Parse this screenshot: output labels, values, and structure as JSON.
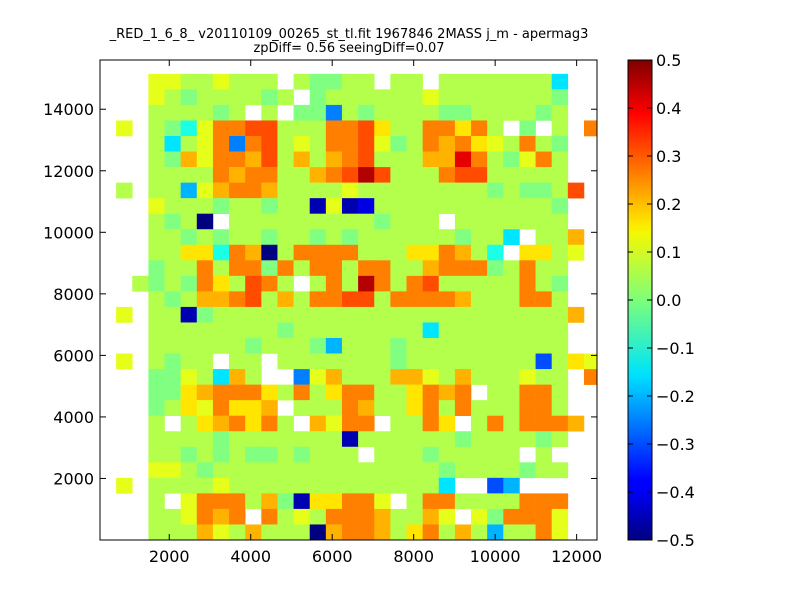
{
  "chart_data": {
    "type": "heatmap",
    "title_line1": "_RED_1_6_8_ v20110109_00265_st_tl.fit 1967846 2MASS j_m - apermag3",
    "title_line2": "zpDiff= 0.56 seeingDiff=0.07",
    "xlim": [
      300,
      12500
    ],
    "ylim": [
      0,
      15600
    ],
    "x_ticks": [
      2000,
      4000,
      6000,
      8000,
      10000,
      12000
    ],
    "x_tick_labels": [
      "2000",
      "4000",
      "6000",
      "8000",
      "10000",
      "12000"
    ],
    "y_ticks": [
      2000,
      4000,
      6000,
      8000,
      10000,
      12000,
      14000
    ],
    "y_tick_labels": [
      "2000",
      "4000",
      "6000",
      "8000",
      "10000",
      "12000",
      "14000"
    ],
    "colorbar": {
      "min": -0.5,
      "max": 0.5,
      "colormap": "jet",
      "ticks": [
        0.5,
        0.4,
        0.3,
        0.2,
        0.1,
        0.0,
        -0.1,
        -0.2,
        -0.3,
        -0.4,
        -0.5
      ],
      "tick_labels": [
        "0.5",
        "0.4",
        "0.3",
        "0.2",
        "0.1",
        "0.0",
        "−0.1",
        "−0.2",
        "−0.3",
        "−0.4",
        "−0.5"
      ]
    },
    "grid": {
      "x0": 300,
      "dx": 396,
      "y0": 0,
      "dy": 505,
      "cols": 31,
      "rows": 31,
      "rows_top_to_bottom": [
        ". . . . . . . . . . . . . . . . . . . . . . . . . . . . . . .",
        ". . . 0.1 0.1 0.05 0.05 0.1 0.05 0.05 0.05 . 0.05 0.0 0.0 0.05 0.05 . 0.05 0.05 . 0.05 0.05 0.05 0.05 0.05 0.05 0.05 -0.15 . .",
        ". . . 0.1 0.05 0.0 0.05 0.05 0.05 0.05 0.0 0.05 . 0.0 0.05 0.05 0.05 0.05 0.05 0.05 0.1 0.05 0.05 0.05 0.05 0.05 0.05 0.05 0.0 . .",
        ". . . 0.05 0.05 0.05 0.05 0.0 0.05 . 0.05 . 0.0 0.0 -0.25 0.05 0.0 0.05 0.05 0.05 0.05 0.0 0.0 0.05 0.05 0.05 0.05 0.0 0.05 . .",
        ". 0.1 . 0.05 0.0 -0.1 0.1 0.25 0.25 0.3 0.3 0.05 0.05 0.05 0.25 0.25 0.3 0.15 0.05 0.05 0.25 0.25 0.15 0.25 0.05 . 0.0 . 0.05 . 0.25",
        ". . . 0.05 -0.15 0.05 0.1 0.25 -0.25 0.25 0.3 0.05 0.1 0.05 0.25 0.25 0.3 0.1 0.0 0.05 0.25 0.2 0.25 0.15 0.1 0.05 0.25 0.05 0.0 . .",
        ". . . 0.05 0.0 0.2 0.1 0.25 0.25 0.2 0.3 0.05 0.2 0.05 0.2 0.25 0.3 0.05 0.05 0.05 0.2 0.2 0.4 0.25 0.05 0.0 0.1 0.25 0.05 . .",
        ". . . 0.05 0.05 0.05 0.05 0.25 0.2 0.25 0.25 0.05 0.05 0.2 0.25 0.3 0.45 0.3 0.05 0.05 0.05 0.25 0.3 0.3 0.05 0.05 0.05 0.05 0.05 . .",
        ". 0.05 . 0.05 0.05 -0.2 0.1 0.2 0.25 0.25 0.2 0.05 0.05 0.05 0.05 0.1 0.05 0.05 0.05 0.05 0.05 0.05 0.05 0.05 0.0 0.05 0.0 0.0 0.05 0.3 .",
        ". . . 0.1 0.05 0.05 0.05 0.0 0.05 0.05 0.0 0.05 0.05 -0.45 0.1 -0.45 -0.4 0.05 0.05 0.05 0.05 0.05 0.05 0.05 0.05 0.05 0.05 0.05 0.0 . .",
        ". . . 0.05 0.0 0.05 -0.5 . 0.05 0.05 0.05 0.05 0.05 0.05 0.05 0.05 0.05 0.0 0.05 0.05 0.05 . 0.05 0.05 0.05 0.05 0.05 0.05 0.05 . .",
        ". . . 0.05 0.05 0.0 0.05 0.0 0.05 0.05 0.0 0.05 0.05 0.0 0.05 0.0 0.05 0.05 0.05 0.05 0.05 0.05 0.0 0.05 0.05 -0.15 . 0.05 0.05 0.2 .",
        ". . . 0.05 0.05 0.15 0.15 -0.1 0.25 0.2 -0.5 0.05 0.25 0.25 0.25 0.25 0.05 0.05 0.05 0.15 0.15 0.25 0.2 0.05 -0.1 . 0.15 0.15 0.05 0.1 .",
        ". . . 0.0 0.05 0.05 0.25 0.05 0.25 0.25 0.0 0.25 0.05 0.25 0.25 0.05 0.25 0.25 0.05 0.05 0.2 0.25 0.25 0.25 0.0 0.05 0.25 0.05 0.05 . .",
        ". . 0.05 0.0 0.05 0.0 0.25 0.15 0.05 0.3 0.25 0.05 . 0.05 0.25 0.05 0.45 0.25 0.05 0.25 0.3 0.05 0.05 0.05 0.05 0.05 0.25 0.05 0.0 . .",
        ". . . 0.05 0.0 0.05 0.2 0.2 0.25 0.3 0.05 0.2 0.05 0.25 0.25 0.3 0.3 0.05 0.25 0.25 0.25 0.25 0.2 0.05 0.05 0.05 0.25 0.25 0.05 . .",
        ". 0.1 . 0.05 0.05 -0.45 0.0 0.05 0.05 0.05 0.05 0.05 0.05 0.05 0.05 0.05 0.05 0.05 0.05 0.05 0.05 0.05 0.05 0.05 0.05 0.05 0.05 0.05 0.05 0.2 .",
        ". . . 0.05 0.05 0.05 0.05 0.05 0.05 0.05 0.05 0.0 0.05 0.05 0.05 0.05 0.05 0.05 0.05 0.05 -0.15 0.05 0.05 0.05 0.05 0.05 0.05 0.05 0.05 . .",
        ". . . 0.05 0.05 0.05 0.05 0.05 0.05 0.0 0.05 0.05 0.05 0.0 -0.2 0.05 0.05 0.05 0.0 0.05 0.05 0.05 0.05 0.05 0.05 0.05 0.05 0.05 0.05 . .",
        ". 0.1 . 0.05 0.0 0.05 0.05 . 0.05 0.05 . 0.05 0.05 0.05 0.05 0.05 0.05 0.05 0.0 0.05 0.05 0.05 0.05 0.05 0.05 0.05 0.05 -0.3 0.05 0.15 0.1",
        ". . . 0.0 0.0 0.1 0.05 -0.15 0.2 0.05 . . -0.25 0.1 0.2 0.05 0.05 0.05 0.2 0.2 0.1 0.05 0.2 0.05 0.05 0.05 0.1 0.05 0.05 . 0.25",
        ". . . 0.0 0.0 0.15 0.2 0.25 0.25 0.25 0.15 0.05 0.25 0.05 0.15 0.25 0.25 0.05 0.05 0.15 0.25 0.2 0.25 . 0.05 0.05 0.25 0.25 0.05 . .",
        ". . . 0.0 0.05 0.15 0.1 0.25 0.15 0.15 0.2 . 0.05 0.05 0.05 0.25 0.2 0.05 0.05 0.15 0.25 0.05 0.25 0.05 0.05 0.05 0.25 0.25 0.05 . .",
        ". . . 0.05 . 0.05 0.15 0.2 0.25 0.15 0.25 0.05 . 0.2 0.1 0.25 0.25 . 0.05 0.05 0.25 0.15 . 0.05 0.25 0.05 0.25 0.25 0.25 0.2 .",
        ". . . 0.05 0.05 0.05 0.05 0.0 0.05 0.05 0.05 0.05 0.05 0.05 0.05 -0.45 0.05 0.05 0.05 0.05 0.05 0.05 0.0 0.05 0.05 0.05 0.05 0.0 0.05 . .",
        ". . . 0.05 0.05 0.0 0.05 0.0 0.05 0.0 0.0 0.05 0.0 0.05 0.05 0.05 . 0.05 0.05 0.05 0.0 0.05 0.05 0.05 0.05 0.05 . 0.05 . . .",
        ". . . 0.1 0.1 0.05 0.0 0.05 0.05 0.05 0.05 0.05 0.05 0.05 0.05 0.05 0.05 0.05 0.05 0.05 0.05 0.0 0.05 0.05 0.05 0.05 0.0 0.05 0.05 . .",
        ". 0.1 . 0.05 0.05 0.05 0.05 0.1 0.05 0.05 0.05 0.05 0.05 0.05 0.05 0.05 0.05 0.05 0.05 0.05 0.05 -0.15 . . -0.3 -0.2 . . . . .",
        ". . . 0.05 . 0.1 0.25 0.25 0.25 0.05 0.2 0.0 -0.45 0.15 0.15 0.25 0.25 0.1 . 0.05 0.25 0.25 0.05 0.05 0.05 0.05 0.25 0.25 0.25 . .",
        ". . . 0.05 0.05 0.1 0.25 0.2 0.25 . 0.25 0.05 0.1 0.05 0.25 0.25 0.25 0.2 0.05 0.05 0.2 0.1 . 0.1 0.0 0.25 0.25 0.25 0.1 . .",
        ". . . 0.05 0.05 0.05 0.2 0.1 0.05 0.2 0.05 0.05 0.05 -0.5 0.2 0.25 0.25 0.2 0.05 0.15 0.25 0.05 0.2 0.05 -0.2 0.05 0.05 0.25 0.1 . ."
      ]
    }
  }
}
